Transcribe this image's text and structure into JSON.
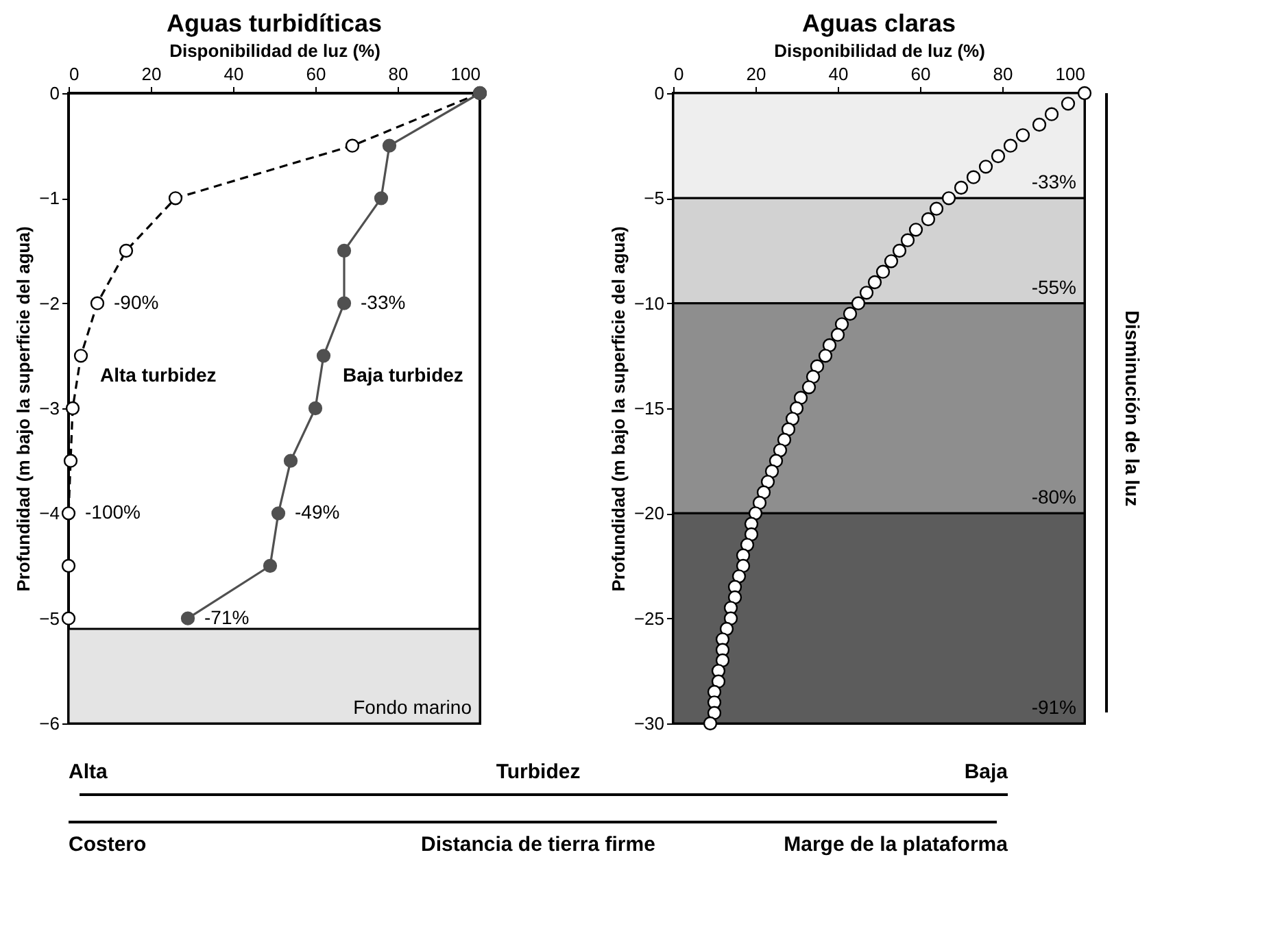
{
  "chart_data": [
    {
      "type": "line",
      "title": "Aguas turbidíticas",
      "xlabel": "Disponibilidad de luz (%)",
      "ylabel": "Profundidad (m bajo la superficie del agua)",
      "xlim": [
        0,
        100
      ],
      "ylim": [
        -6,
        0
      ],
      "xticks": [
        0,
        20,
        40,
        60,
        80,
        100
      ],
      "yticks": [
        0,
        -1,
        -2,
        -3,
        -4,
        -5,
        -6
      ],
      "grid": false,
      "marker": "circle",
      "series": [
        {
          "name": "Alta turbidez",
          "color": "#000000",
          "line_style": "dashed",
          "x": [
            100,
            69,
            26,
            14,
            7,
            3,
            1,
            0.5,
            0,
            0,
            0
          ],
          "values": [
            0,
            -0.5,
            -1,
            -1.5,
            -2,
            -2.5,
            -3,
            -3.5,
            -4,
            -4.5,
            -5
          ]
        },
        {
          "name": "Baja turbidez",
          "color": "#505050",
          "line_style": "solid",
          "x": [
            100,
            78,
            76,
            67,
            67,
            62,
            60,
            54,
            51,
            49,
            29
          ],
          "values": [
            0,
            -0.5,
            -1,
            -1.5,
            -2,
            -2.5,
            -3,
            -3.5,
            -4,
            -4.5,
            -5
          ]
        }
      ],
      "bands": [
        {
          "axis": "y",
          "from": -5.1,
          "to": -6,
          "label": "Fondo marino",
          "color": "#e4e4e4"
        }
      ],
      "annotations": [
        {
          "text": "-90%",
          "x": 7,
          "y": -2
        },
        {
          "text": "-100%",
          "x": 0,
          "y": -4
        },
        {
          "text": "-33%",
          "x": 67,
          "y": -2
        },
        {
          "text": "-49%",
          "x": 51,
          "y": -4
        },
        {
          "text": "-71%",
          "x": 29,
          "y": -5
        }
      ]
    },
    {
      "type": "line",
      "title": "Aguas claras",
      "xlabel": "Disponibilidad de luz (%)",
      "ylabel": "Profundidad (m bajo la superficie del agua)",
      "y2label": "Disminución de la luz",
      "xlim": [
        0,
        100
      ],
      "ylim": [
        -30,
        0
      ],
      "xticks": [
        0,
        20,
        40,
        60,
        80,
        100
      ],
      "yticks": [
        0,
        -5,
        -10,
        -15,
        -20,
        -25,
        -30
      ],
      "grid": false,
      "marker": "circle",
      "series": [
        {
          "type": "scatter",
          "color": "#ffffff",
          "x": [
            100,
            96,
            92,
            89,
            85,
            82,
            79,
            76,
            73,
            70,
            67,
            64,
            62,
            59,
            57,
            55,
            53,
            51,
            49,
            47,
            45,
            43,
            41,
            40,
            38,
            37,
            35,
            34,
            33,
            31,
            30,
            29,
            28,
            27,
            26,
            25,
            24,
            23,
            22,
            21,
            20,
            19,
            19,
            18,
            17,
            17,
            16,
            15,
            15,
            14,
            14,
            13,
            12,
            12,
            12,
            11,
            11,
            10,
            10,
            10,
            9
          ],
          "values": [
            0,
            -0.5,
            -1,
            -1.5,
            -2,
            -2.5,
            -3,
            -3.5,
            -4,
            -4.5,
            -5,
            -5.5,
            -6,
            -6.5,
            -7,
            -7.5,
            -8,
            -8.5,
            -9,
            -9.5,
            -10,
            -10.5,
            -11,
            -11.5,
            -12,
            -12.5,
            -13,
            -13.5,
            -14,
            -14.5,
            -15,
            -15.5,
            -16,
            -16.5,
            -17,
            -17.5,
            -18,
            -18.5,
            -19,
            -19.5,
            -20,
            -20.5,
            -21,
            -21.5,
            -22,
            -22.5,
            -23,
            -23.5,
            -24,
            -24.5,
            -25,
            -25.5,
            -26,
            -26.5,
            -27,
            -27.5,
            -28,
            -28.5,
            -29,
            -29.5,
            -30
          ]
        }
      ],
      "bands": [
        {
          "axis": "y",
          "from": 0,
          "to": -5,
          "label": "-33%",
          "color": "#eeeeee"
        },
        {
          "axis": "y",
          "from": -5,
          "to": -10,
          "label": "-55%",
          "color": "#d2d2d2"
        },
        {
          "axis": "y",
          "from": -10,
          "to": -20,
          "label": "-80%",
          "color": "#8e8e8e"
        },
        {
          "axis": "y",
          "from": -20,
          "to": -30,
          "label": "-91%",
          "color": "#5c5c5c"
        }
      ]
    },
    {
      "type": "other",
      "annotations": [
        "Alta",
        "Turbidez",
        "Baja",
        "Costero",
        "Distancia de tierra firme",
        "Marge de la plataforma"
      ]
    }
  ]
}
